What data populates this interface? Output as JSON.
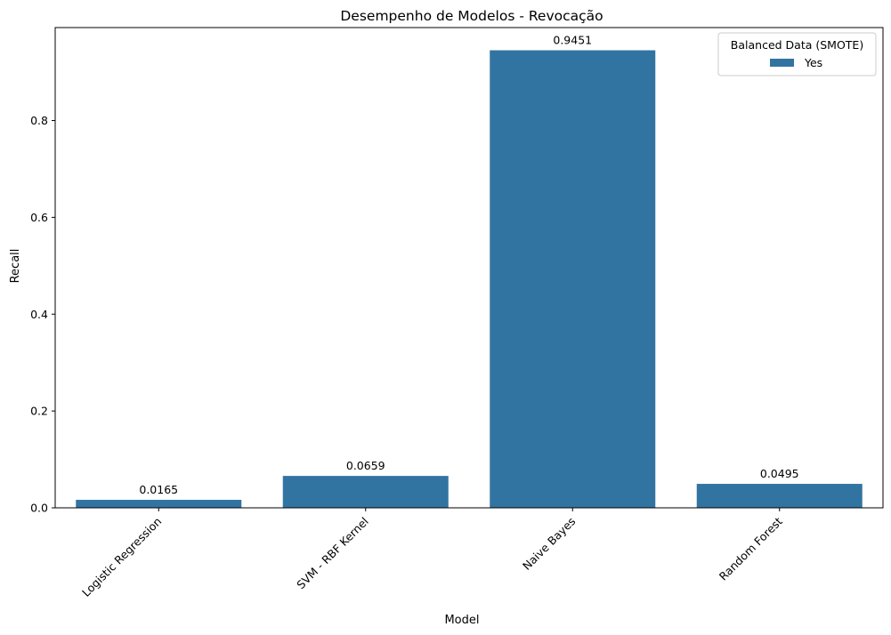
{
  "chart_data": {
    "type": "bar",
    "title": "Desempenho de Modelos - Revocação",
    "xlabel": "Model",
    "ylabel": "Recall",
    "categories": [
      "Logistic Regression",
      "SVM - RBF Kernel",
      "Naive Bayes",
      "Random Forest"
    ],
    "series": [
      {
        "name": "Yes",
        "values": [
          0.0165,
          0.0659,
          0.9451,
          0.0495
        ],
        "labels": [
          "0.0165",
          "0.0659",
          "0.9451",
          "0.0495"
        ],
        "color": "#3274a1"
      }
    ],
    "ylim": [
      0,
      0.992
    ],
    "yticks": [
      0.0,
      0.2,
      0.4,
      0.6,
      0.8
    ],
    "ytick_labels": [
      "0.0",
      "0.2",
      "0.4",
      "0.6",
      "0.8"
    ],
    "legend": {
      "title": "Balanced Data (SMOTE)",
      "position": "top-right"
    },
    "grid": false,
    "xtick_rotation": 45
  }
}
